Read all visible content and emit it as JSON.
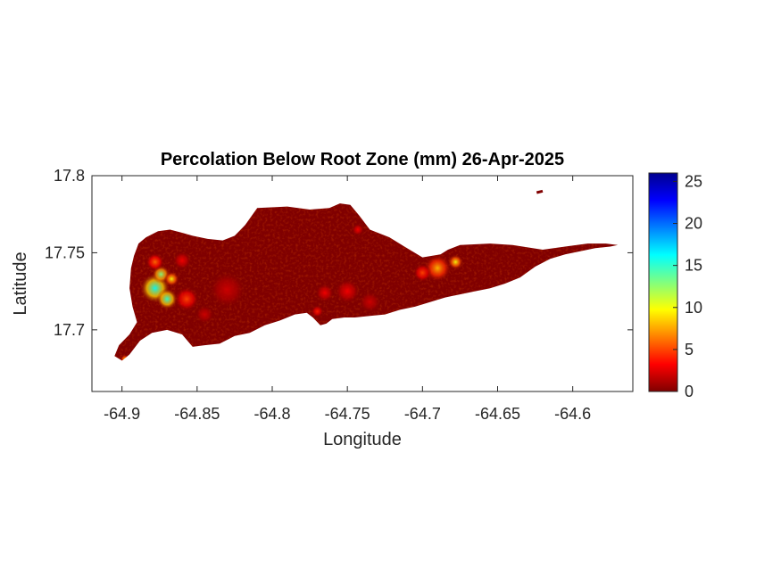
{
  "chart_data": {
    "type": "heatmap",
    "title": "Percolation Below Root Zone (mm) 26-Apr-2025",
    "xlabel": "Longitude",
    "ylabel": "Latitude",
    "xlim": [
      -64.92,
      -64.56
    ],
    "ylim": [
      17.66,
      17.8
    ],
    "x_ticks": [
      -64.9,
      -64.85,
      -64.8,
      -64.75,
      -64.7,
      -64.65,
      -64.6
    ],
    "x_tick_labels": [
      "-64.9",
      "-64.85",
      "-64.8",
      "-64.75",
      "-64.7",
      "-64.65",
      "-64.6"
    ],
    "y_ticks": [
      17.7,
      17.75,
      17.8
    ],
    "y_tick_labels": [
      "17.7",
      "17.75",
      "17.8"
    ],
    "colorbar": {
      "range": [
        0,
        26
      ],
      "ticks": [
        0,
        5,
        10,
        15,
        20,
        25
      ],
      "tick_labels": [
        "0",
        "5",
        "10",
        "15",
        "20",
        "25"
      ],
      "colormap": "jet"
    },
    "background_value": 0,
    "island_outline": [
      [
        -64.9,
        17.68
      ],
      [
        -64.895,
        17.684
      ],
      [
        -64.888,
        17.693
      ],
      [
        -64.88,
        17.698
      ],
      [
        -64.87,
        17.7
      ],
      [
        -64.86,
        17.697
      ],
      [
        -64.853,
        17.689
      ],
      [
        -64.845,
        17.69
      ],
      [
        -64.835,
        17.691
      ],
      [
        -64.825,
        17.696
      ],
      [
        -64.815,
        17.698
      ],
      [
        -64.805,
        17.703
      ],
      [
        -64.795,
        17.706
      ],
      [
        -64.785,
        17.71
      ],
      [
        -64.777,
        17.711
      ],
      [
        -64.773,
        17.708
      ],
      [
        -64.768,
        17.703
      ],
      [
        -64.764,
        17.704
      ],
      [
        -64.76,
        17.707
      ],
      [
        -64.752,
        17.708
      ],
      [
        -64.745,
        17.708
      ],
      [
        -64.735,
        17.709
      ],
      [
        -64.725,
        17.71
      ],
      [
        -64.715,
        17.713
      ],
      [
        -64.705,
        17.715
      ],
      [
        -64.695,
        17.718
      ],
      [
        -64.685,
        17.721
      ],
      [
        -64.675,
        17.723
      ],
      [
        -64.665,
        17.725
      ],
      [
        -64.655,
        17.727
      ],
      [
        -64.645,
        17.73
      ],
      [
        -64.635,
        17.734
      ],
      [
        -64.625,
        17.741
      ],
      [
        -64.615,
        17.746
      ],
      [
        -64.605,
        17.749
      ],
      [
        -64.595,
        17.751
      ],
      [
        -64.585,
        17.753
      ],
      [
        -64.575,
        17.754
      ],
      [
        -64.57,
        17.755
      ],
      [
        -64.578,
        17.756
      ],
      [
        -64.59,
        17.756
      ],
      [
        -64.605,
        17.754
      ],
      [
        -64.62,
        17.752
      ],
      [
        -64.64,
        17.755
      ],
      [
        -64.655,
        17.756
      ],
      [
        -64.675,
        17.755
      ],
      [
        -64.683,
        17.752
      ],
      [
        -64.688,
        17.749
      ],
      [
        -64.7,
        17.747
      ],
      [
        -64.712,
        17.754
      ],
      [
        -64.722,
        17.76
      ],
      [
        -64.735,
        17.765
      ],
      [
        -64.742,
        17.774
      ],
      [
        -64.748,
        17.781
      ],
      [
        -64.755,
        17.782
      ],
      [
        -64.762,
        17.779
      ],
      [
        -64.775,
        17.778
      ],
      [
        -64.79,
        17.78
      ],
      [
        -64.81,
        17.779
      ],
      [
        -64.818,
        17.768
      ],
      [
        -64.825,
        17.761
      ],
      [
        -64.833,
        17.758
      ],
      [
        -64.843,
        17.759
      ],
      [
        -64.853,
        17.761
      ],
      [
        -64.86,
        17.763
      ],
      [
        -64.868,
        17.765
      ],
      [
        -64.876,
        17.764
      ],
      [
        -64.884,
        17.76
      ],
      [
        -64.889,
        17.756
      ],
      [
        -64.892,
        17.748
      ],
      [
        -64.894,
        17.74
      ],
      [
        -64.895,
        17.727
      ],
      [
        -64.893,
        17.715
      ],
      [
        -64.89,
        17.705
      ],
      [
        -64.895,
        17.697
      ],
      [
        -64.902,
        17.69
      ],
      [
        -64.905,
        17.683
      ]
    ],
    "islet": [
      [
        -64.624,
        17.789
      ],
      [
        -64.62,
        17.79
      ]
    ],
    "hotspots": [
      {
        "lon": -64.878,
        "lat": 17.727,
        "r": 0.01,
        "value": 16
      },
      {
        "lon": -64.87,
        "lat": 17.72,
        "r": 0.007,
        "value": 15
      },
      {
        "lon": -64.874,
        "lat": 17.736,
        "r": 0.006,
        "value": 13
      },
      {
        "lon": -64.867,
        "lat": 17.733,
        "r": 0.005,
        "value": 10
      },
      {
        "lon": -64.878,
        "lat": 17.744,
        "r": 0.006,
        "value": 6
      },
      {
        "lon": -64.857,
        "lat": 17.72,
        "r": 0.008,
        "value": 5
      },
      {
        "lon": -64.898,
        "lat": 17.681,
        "r": 0.003,
        "value": 9
      },
      {
        "lon": -64.69,
        "lat": 17.74,
        "r": 0.009,
        "value": 8
      },
      {
        "lon": -64.678,
        "lat": 17.744,
        "r": 0.005,
        "value": 10
      },
      {
        "lon": -64.7,
        "lat": 17.737,
        "r": 0.006,
        "value": 5
      },
      {
        "lon": -64.75,
        "lat": 17.725,
        "r": 0.008,
        "value": 3
      },
      {
        "lon": -64.765,
        "lat": 17.724,
        "r": 0.006,
        "value": 3
      },
      {
        "lon": -64.735,
        "lat": 17.718,
        "r": 0.007,
        "value": 2
      },
      {
        "lon": -64.83,
        "lat": 17.726,
        "r": 0.012,
        "value": 2
      },
      {
        "lon": -64.845,
        "lat": 17.71,
        "r": 0.006,
        "value": 2
      },
      {
        "lon": -64.743,
        "lat": 17.765,
        "r": 0.004,
        "value": 3
      },
      {
        "lon": -64.77,
        "lat": 17.712,
        "r": 0.004,
        "value": 4
      },
      {
        "lon": -64.86,
        "lat": 17.745,
        "r": 0.006,
        "value": 3
      }
    ]
  }
}
